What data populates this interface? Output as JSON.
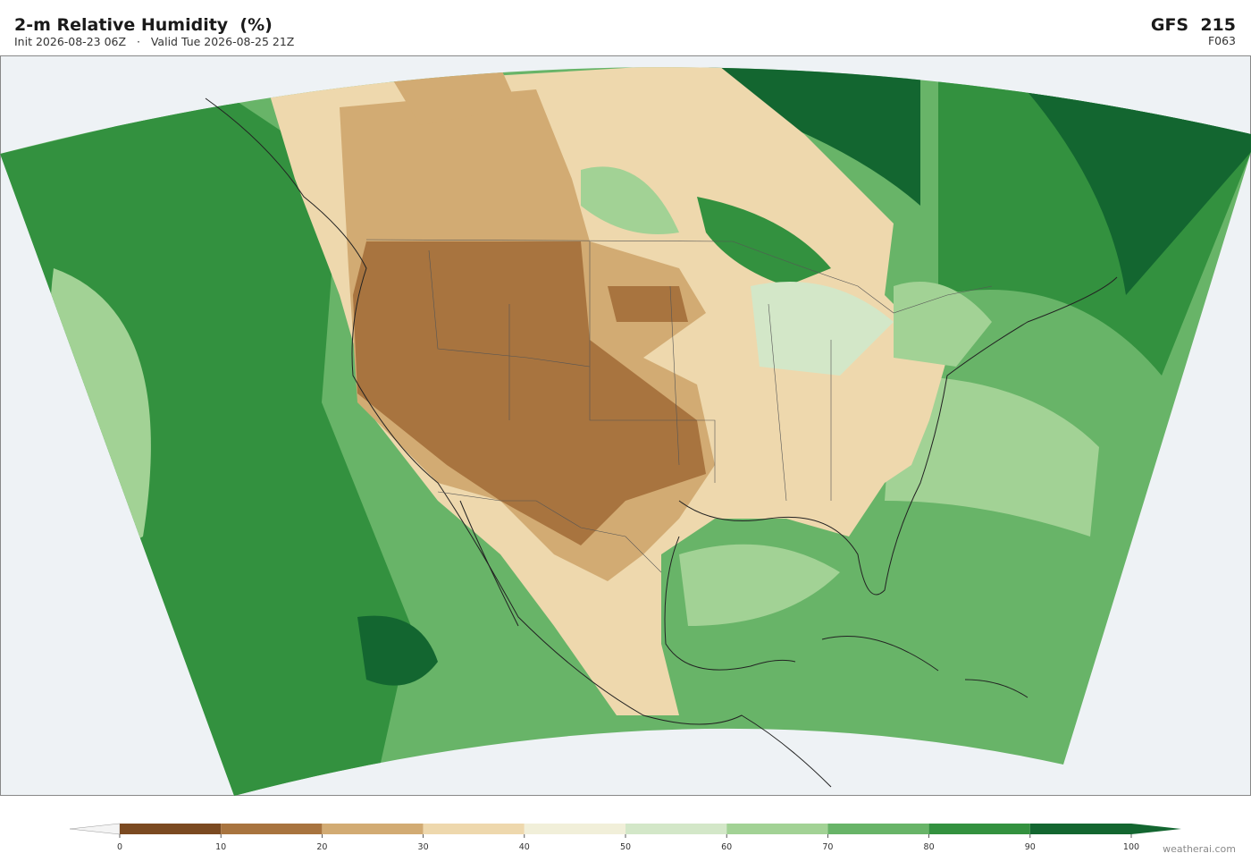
{
  "header": {
    "title": "2-m Relative Humidity  (%)",
    "subtitle": "Init 2026-08-23 06Z   ·   Valid Tue 2026-08-25 21Z",
    "model": "GFS  215",
    "forecast_hour": "F063"
  },
  "colorbar": {
    "ticks": [
      0,
      10,
      20,
      30,
      40,
      50,
      60,
      70,
      80,
      90,
      100
    ],
    "colors": [
      "#7b4a21",
      "#a8743f",
      "#d2ab73",
      "#eed8ad",
      "#f1efd9",
      "#d3e7c8",
      "#a2d295",
      "#68b468",
      "#33913f",
      "#136630"
    ],
    "extend_colors": [
      "#f4f4f4",
      "#136630"
    ]
  },
  "watermark": "weatherai.com"
}
